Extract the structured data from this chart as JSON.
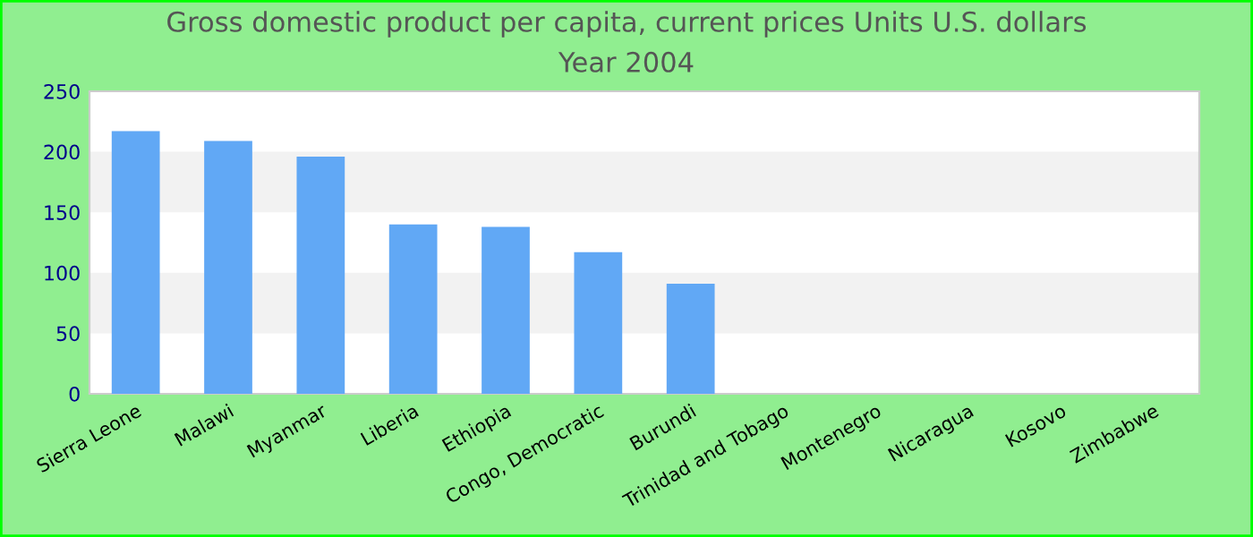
{
  "chart_data": {
    "type": "bar",
    "title": "Gross domestic product per capita, current prices Units U.S. dollars",
    "subtitle": "Year 2004",
    "categories": [
      "Sierra Leone",
      "Malawi",
      "Myanmar",
      "Liberia",
      "Ethiopia",
      "Congo, Democratic",
      "Burundi",
      "Trinidad and Tobago",
      "Montenegro",
      "Nicaragua",
      "Kosovo",
      "Zimbabwe"
    ],
    "values": [
      217,
      209,
      196,
      140,
      138,
      117,
      91,
      null,
      null,
      null,
      null,
      null
    ],
    "color": "#61a8f5",
    "ylim": [
      0,
      250
    ],
    "yticks": [
      0,
      50,
      100,
      150,
      200,
      250
    ],
    "bands": [
      {
        "axis": "y",
        "from": 50,
        "to": 100,
        "color": "#f2f2f2"
      },
      {
        "axis": "y",
        "from": 150,
        "to": 200,
        "color": "#f2f2f2"
      }
    ],
    "grid": false,
    "legend": false
  }
}
